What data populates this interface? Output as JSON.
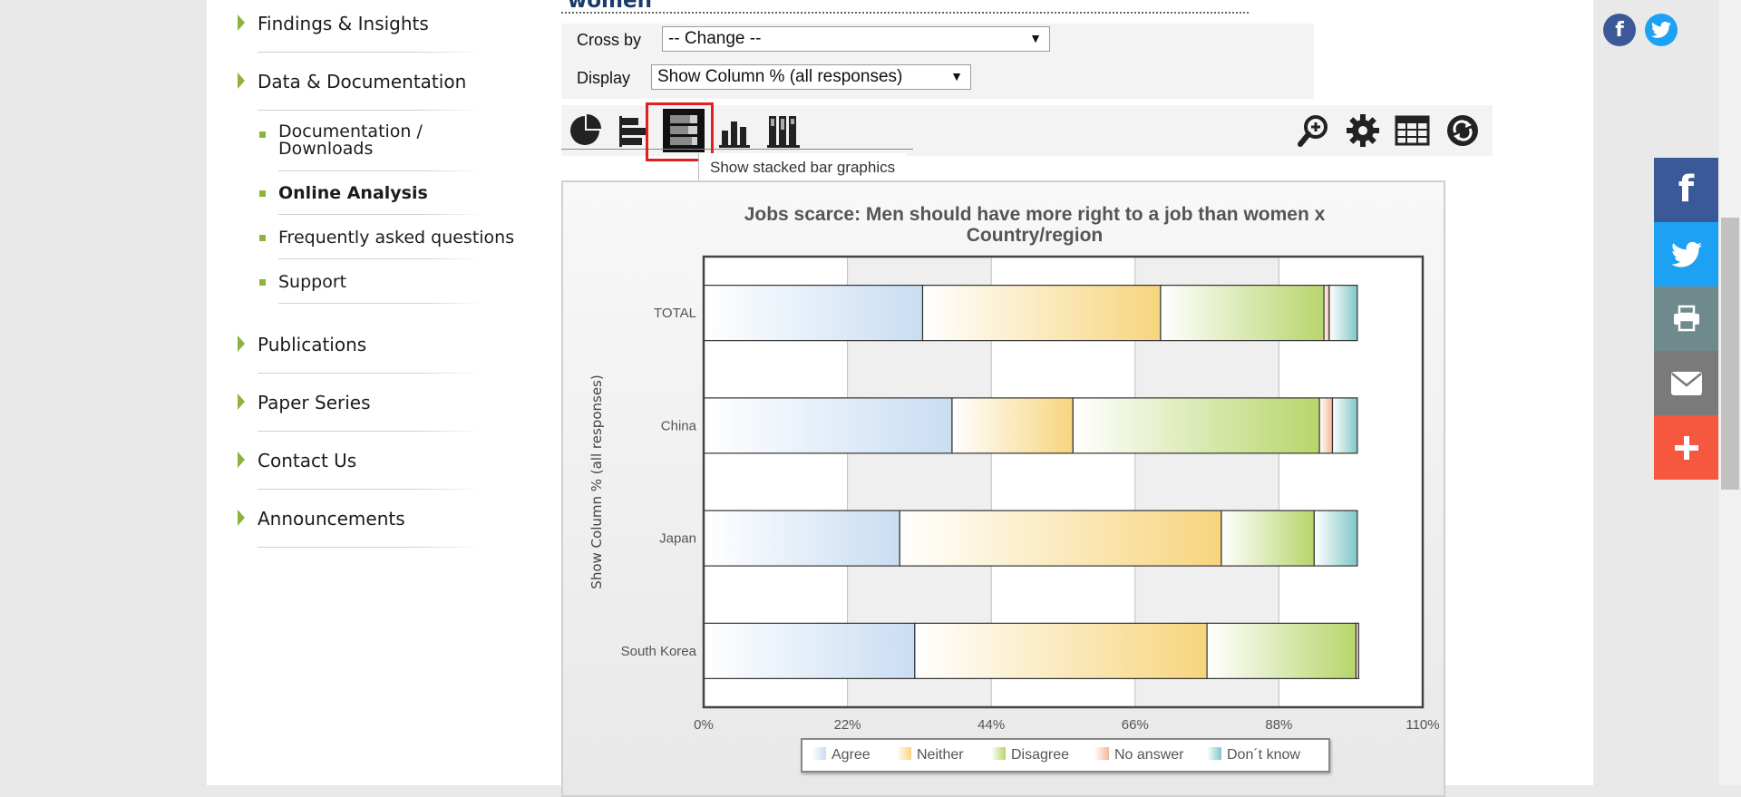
{
  "title_fragment": "women",
  "sidebar": {
    "items": [
      {
        "label": "Findings & Insights"
      },
      {
        "label": "Data & Documentation"
      },
      {
        "label": "Publications"
      },
      {
        "label": "Paper Series"
      },
      {
        "label": "Contact Us"
      },
      {
        "label": "Announcements"
      }
    ],
    "sub_items": [
      {
        "label": "Documentation / Downloads"
      },
      {
        "label": "Online Analysis"
      },
      {
        "label": "Frequently asked questions"
      },
      {
        "label": "Support"
      }
    ]
  },
  "options": {
    "cross_by_label": "Cross by",
    "cross_by_value": "-- Change --",
    "display_label": "Display",
    "display_value": "Show Column % (all responses)"
  },
  "toolbar": {
    "tooltip": "Show stacked bar graphics",
    "left_icons": [
      "pie-chart-icon",
      "horizontal-bar-icon",
      "stacked-bar-icon",
      "vertical-bar-icon",
      "stacked-column-icon"
    ],
    "right_icons": [
      "zoom-icon",
      "gear-icon",
      "table-icon",
      "refresh-icon"
    ]
  },
  "chart_data": {
    "type": "bar",
    "orientation": "horizontal",
    "stacked": true,
    "title": "Jobs scarce: Men should have more right to a job than women x Country/region",
    "ylabel": "Show Column % (all responses)",
    "categories": [
      "TOTAL",
      "China",
      "Japan",
      "South Korea"
    ],
    "xlim": [
      0,
      110
    ],
    "xticks": [
      "0%",
      "22%",
      "44%",
      "66%",
      "88%",
      "110%"
    ],
    "grid": true,
    "legend_position": "bottom",
    "series": [
      {
        "name": "Agree",
        "values": [
          33.5,
          38.0,
          30.0,
          32.3
        ],
        "color": "#c9ddf2"
      },
      {
        "name": "Neither",
        "values": [
          36.4,
          18.5,
          49.2,
          44.7
        ],
        "color": "#f7d57e"
      },
      {
        "name": "Disagree",
        "values": [
          25.0,
          37.7,
          14.2,
          22.8
        ],
        "color": "#b8d56b"
      },
      {
        "name": "No answer",
        "values": [
          0.8,
          2.0,
          0.0,
          0.4
        ],
        "color": "#f5b799"
      },
      {
        "name": "Don´t know",
        "values": [
          4.3,
          3.8,
          6.6,
          0.0
        ],
        "color": "#7fc6c8"
      }
    ]
  },
  "social": {
    "share_buttons": [
      "facebook-icon",
      "twitter-icon",
      "print-icon",
      "email-icon",
      "plus-icon"
    ],
    "colors": {
      "facebook": "#3b5998",
      "twitter": "#1da1f2",
      "print": "#6e8a8c",
      "email": "#7a7a7a",
      "plus": "#f5573f"
    }
  }
}
